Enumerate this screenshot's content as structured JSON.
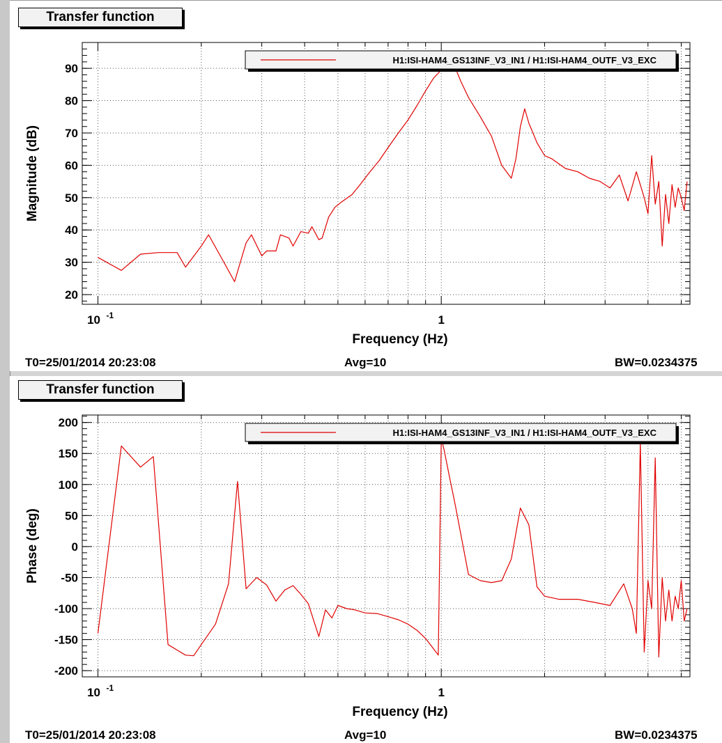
{
  "window": {
    "background": "#d4d4d4"
  },
  "chart_data": [
    {
      "type": "line",
      "title": "Transfer function",
      "xlabel": "Frequency (Hz)",
      "ylabel": "Magnitude (dB)",
      "xscale": "log",
      "xlim": [
        0.09,
        5.3
      ],
      "ylim": [
        17,
        98
      ],
      "xtick_labels": [
        {
          "value": 0.1,
          "base": "10",
          "exp": "-1"
        },
        {
          "value": 1,
          "base": "1",
          "exp": ""
        }
      ],
      "yticks": [
        20,
        30,
        40,
        50,
        60,
        70,
        80,
        90
      ],
      "grid": true,
      "legend": "top-right",
      "series": [
        {
          "name": "H1:ISI-HAM4_GS13INF_V3_IN1 / H1:ISI-HAM4_OUTF_V3_EXC",
          "color": "#e00000",
          "x": [
            0.1,
            0.117,
            0.133,
            0.15,
            0.17,
            0.18,
            0.2,
            0.21,
            0.23,
            0.25,
            0.27,
            0.28,
            0.3,
            0.31,
            0.33,
            0.34,
            0.36,
            0.37,
            0.39,
            0.41,
            0.42,
            0.44,
            0.45,
            0.47,
            0.49,
            0.51,
            0.55,
            0.58,
            0.62,
            0.66,
            0.7,
            0.75,
            0.8,
            0.85,
            0.9,
            0.95,
            1.0,
            1.05,
            1.1,
            1.14,
            1.2,
            1.3,
            1.4,
            1.5,
            1.6,
            1.65,
            1.7,
            1.75,
            1.8,
            1.9,
            2.0,
            2.1,
            2.3,
            2.5,
            2.7,
            2.9,
            3.1,
            3.3,
            3.5,
            3.7,
            3.9,
            4.0,
            4.1,
            4.2,
            4.3,
            4.4,
            4.5,
            4.6,
            4.7,
            4.8,
            4.9,
            5.0,
            5.1,
            5.2
          ],
          "y": [
            31.5,
            27.5,
            32.5,
            33,
            33,
            28.5,
            35,
            38.5,
            31,
            24,
            36,
            38.5,
            32,
            33.5,
            33.5,
            38.5,
            37.5,
            35,
            39.5,
            39,
            41,
            37,
            37.5,
            44,
            47,
            48.5,
            51,
            54,
            58,
            61.5,
            65.5,
            70,
            74,
            78.5,
            83,
            87,
            89.5,
            91,
            90,
            86,
            81,
            75,
            69,
            60,
            56,
            62,
            72,
            77.5,
            73,
            67,
            63,
            62,
            59,
            58,
            56,
            55,
            53,
            57,
            49,
            58,
            50,
            45,
            63,
            48,
            55,
            35,
            51,
            42,
            54,
            47,
            53,
            50,
            46,
            55
          ]
        }
      ],
      "footer": {
        "t0": "T0=25/01/2014 20:23:08",
        "avg": "Avg=10",
        "bw": "BW=0.0234375"
      }
    },
    {
      "type": "line",
      "title": "Transfer function",
      "xlabel": "Frequency (Hz)",
      "ylabel": "Phase (deg)",
      "xscale": "log",
      "xlim": [
        0.09,
        5.3
      ],
      "ylim": [
        -210,
        212
      ],
      "xtick_labels": [
        {
          "value": 0.1,
          "base": "10",
          "exp": "-1"
        },
        {
          "value": 1,
          "base": "1",
          "exp": ""
        }
      ],
      "yticks": [
        -200,
        -150,
        -100,
        -50,
        0,
        50,
        100,
        150,
        200
      ],
      "grid": true,
      "legend": "top-right",
      "series": [
        {
          "name": "H1:ISI-HAM4_GS13INF_V3_IN1 / H1:ISI-HAM4_OUTF_V3_EXC",
          "color": "#e00000",
          "x": [
            0.1,
            0.117,
            0.133,
            0.145,
            0.16,
            0.18,
            0.19,
            0.2,
            0.22,
            0.24,
            0.255,
            0.27,
            0.29,
            0.31,
            0.33,
            0.35,
            0.37,
            0.39,
            0.41,
            0.44,
            0.46,
            0.48,
            0.5,
            0.53,
            0.56,
            0.6,
            0.65,
            0.7,
            0.75,
            0.8,
            0.85,
            0.9,
            0.95,
            0.98,
            1.0,
            1.02,
            1.05,
            1.1,
            1.2,
            1.3,
            1.4,
            1.5,
            1.6,
            1.7,
            1.8,
            1.9,
            2.0,
            2.2,
            2.5,
            2.8,
            3.1,
            3.4,
            3.6,
            3.7,
            3.8,
            3.9,
            4.0,
            4.1,
            4.2,
            4.3,
            4.4,
            4.5,
            4.6,
            4.7,
            4.8,
            4.9,
            5.0,
            5.1,
            5.2
          ],
          "y": [
            -140,
            162,
            128,
            145,
            -158,
            -175,
            -176,
            -158,
            -125,
            -60,
            105,
            -68,
            -50,
            -62,
            -88,
            -70,
            -63,
            -77,
            -92,
            -145,
            -102,
            -115,
            -95,
            -100,
            -102,
            -107,
            -108,
            -113,
            -118,
            -125,
            -135,
            -148,
            -165,
            -175,
            175,
            155,
            120,
            65,
            -45,
            -55,
            -58,
            -55,
            -20,
            62,
            35,
            -65,
            -80,
            -85,
            -85,
            -90,
            -95,
            -60,
            -100,
            -140,
            168,
            -170,
            -55,
            -100,
            143,
            -178,
            -50,
            -120,
            -70,
            -120,
            -80,
            -100,
            -55,
            -120,
            -100
          ]
        }
      ],
      "footer": {
        "t0": "T0=25/01/2014 20:23:08",
        "avg": "Avg=10",
        "bw": "BW=0.0234375"
      }
    }
  ]
}
